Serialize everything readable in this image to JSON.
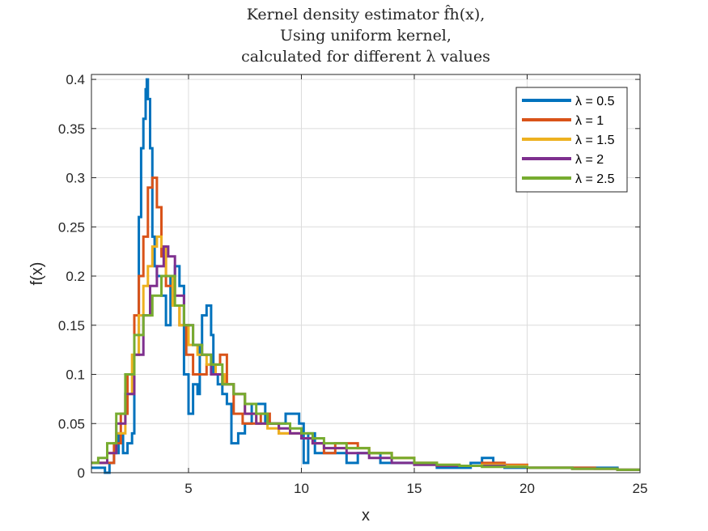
{
  "chart_data": {
    "type": "line",
    "title": [
      "Kernel density estimator f̂h(x),",
      "Using uniform kernel,",
      "calculated for different λ values"
    ],
    "xlabel": "x",
    "ylabel": "f(x)",
    "xlim": [
      0.7,
      25
    ],
    "ylim": [
      0,
      0.405
    ],
    "x_ticks": [
      5,
      10,
      15,
      20,
      25
    ],
    "y_ticks": [
      0,
      0.05,
      0.1,
      0.15,
      0.2,
      0.25,
      0.3,
      0.35,
      0.4
    ],
    "grid": true,
    "legend_position": "top-right",
    "series": [
      {
        "name": "λ = 0.5",
        "color": "#0072BD",
        "x": [
          0.7,
          1.0,
          1.3,
          1.5,
          1.7,
          1.9,
          2.1,
          2.3,
          2.5,
          2.6,
          2.8,
          2.9,
          3.0,
          3.1,
          3.15,
          3.2,
          3.3,
          3.4,
          3.5,
          3.6,
          3.8,
          4.0,
          4.2,
          4.4,
          4.6,
          4.8,
          5.0,
          5.2,
          5.4,
          5.5,
          5.6,
          5.8,
          6.0,
          6.1,
          6.3,
          6.5,
          6.7,
          6.9,
          7.2,
          7.5,
          7.8,
          8.1,
          8.4,
          8.7,
          9.0,
          9.3,
          9.6,
          9.9,
          10.1,
          10.3,
          10.6,
          11.0,
          11.5,
          12.0,
          12.5,
          13.0,
          13.5,
          14.0,
          14.5,
          15.0,
          15.5,
          16.0,
          16.5,
          17.0,
          17.5,
          18.0,
          18.5,
          19.0,
          19.5,
          20.0,
          20.5,
          21.0,
          22.0,
          23.0,
          24.0,
          25.0
        ],
        "y": [
          0.005,
          0.005,
          0.0,
          0.01,
          0.02,
          0.04,
          0.02,
          0.03,
          0.04,
          0.12,
          0.26,
          0.33,
          0.36,
          0.39,
          0.4,
          0.38,
          0.33,
          0.24,
          0.21,
          0.2,
          0.18,
          0.15,
          0.2,
          0.21,
          0.19,
          0.1,
          0.06,
          0.09,
          0.08,
          0.13,
          0.16,
          0.17,
          0.14,
          0.1,
          0.09,
          0.08,
          0.07,
          0.03,
          0.04,
          0.05,
          0.07,
          0.07,
          0.05,
          0.05,
          0.05,
          0.06,
          0.06,
          0.05,
          0.01,
          0.04,
          0.02,
          0.02,
          0.02,
          0.01,
          0.02,
          0.02,
          0.01,
          0.01,
          0.01,
          0.01,
          0.01,
          0.005,
          0.005,
          0.005,
          0.01,
          0.015,
          0.01,
          0.005,
          0.005,
          0.005,
          0.005,
          0.005,
          0.005,
          0.005,
          0.003,
          0.003
        ]
      },
      {
        "name": "λ = 1",
        "color": "#D95319",
        "x": [
          0.7,
          1.0,
          1.4,
          1.7,
          2.0,
          2.3,
          2.6,
          2.8,
          3.0,
          3.2,
          3.4,
          3.6,
          3.8,
          4.0,
          4.3,
          4.6,
          4.9,
          5.2,
          5.5,
          5.8,
          6.1,
          6.4,
          6.7,
          7.0,
          7.4,
          7.8,
          8.2,
          8.6,
          9.0,
          9.5,
          10.0,
          10.5,
          11.0,
          11.5,
          12.0,
          12.5,
          13.0,
          14.0,
          15.0,
          16.0,
          17.0,
          18.0,
          19.0,
          20.0,
          21.0,
          22.0,
          23.0,
          24.0,
          25.0
        ],
        "y": [
          0.01,
          0.01,
          0.01,
          0.03,
          0.06,
          0.1,
          0.16,
          0.2,
          0.24,
          0.29,
          0.3,
          0.27,
          0.22,
          0.19,
          0.17,
          0.15,
          0.12,
          0.1,
          0.1,
          0.11,
          0.11,
          0.12,
          0.09,
          0.06,
          0.05,
          0.05,
          0.06,
          0.05,
          0.04,
          0.04,
          0.035,
          0.03,
          0.02,
          0.03,
          0.03,
          0.025,
          0.02,
          0.015,
          0.01,
          0.007,
          0.007,
          0.01,
          0.008,
          0.005,
          0.005,
          0.005,
          0.004,
          0.003,
          0.003
        ]
      },
      {
        "name": "λ = 1.5",
        "color": "#EDB120",
        "x": [
          0.7,
          1.0,
          1.4,
          1.8,
          2.2,
          2.5,
          2.8,
          3.0,
          3.2,
          3.4,
          3.6,
          3.8,
          4.0,
          4.3,
          4.6,
          5.0,
          5.4,
          5.8,
          6.2,
          6.6,
          7.0,
          7.5,
          8.0,
          8.5,
          9.0,
          9.5,
          10.0,
          10.5,
          11.0,
          11.5,
          12.0,
          13.0,
          14.0,
          15.0,
          16.0,
          17.0,
          18.0,
          19.0,
          20.0,
          21.0,
          22.0,
          23.0,
          24.0,
          25.0
        ],
        "y": [
          0.01,
          0.01,
          0.02,
          0.04,
          0.08,
          0.12,
          0.16,
          0.19,
          0.21,
          0.23,
          0.24,
          0.23,
          0.2,
          0.17,
          0.15,
          0.13,
          0.12,
          0.11,
          0.1,
          0.09,
          0.08,
          0.06,
          0.05,
          0.045,
          0.04,
          0.04,
          0.035,
          0.03,
          0.025,
          0.025,
          0.025,
          0.02,
          0.015,
          0.01,
          0.008,
          0.007,
          0.008,
          0.007,
          0.005,
          0.005,
          0.004,
          0.004,
          0.003,
          0.003
        ]
      },
      {
        "name": "λ = 2",
        "color": "#7E2F8E",
        "x": [
          0.7,
          1.0,
          1.4,
          1.8,
          2.2,
          2.6,
          3.0,
          3.3,
          3.6,
          3.9,
          4.1,
          4.4,
          4.8,
          5.2,
          5.6,
          6.0,
          6.5,
          7.0,
          7.5,
          8.0,
          8.5,
          9.0,
          9.5,
          10.0,
          10.5,
          11.0,
          12.0,
          13.0,
          14.0,
          15.0,
          16.0,
          17.0,
          18.0,
          19.0,
          20.0,
          21.0,
          22.0,
          23.0,
          24.0,
          25.0
        ],
        "y": [
          0.01,
          0.01,
          0.02,
          0.05,
          0.08,
          0.12,
          0.16,
          0.19,
          0.21,
          0.23,
          0.22,
          0.18,
          0.15,
          0.13,
          0.12,
          0.1,
          0.09,
          0.08,
          0.06,
          0.05,
          0.05,
          0.045,
          0.04,
          0.035,
          0.03,
          0.025,
          0.02,
          0.015,
          0.01,
          0.008,
          0.007,
          0.007,
          0.007,
          0.006,
          0.005,
          0.005,
          0.004,
          0.004,
          0.003,
          0.003
        ]
      },
      {
        "name": "λ = 2.5",
        "color": "#77AC30",
        "x": [
          0.7,
          1.0,
          1.4,
          1.8,
          2.2,
          2.6,
          3.0,
          3.4,
          3.8,
          4.1,
          4.4,
          4.8,
          5.2,
          5.6,
          6.0,
          6.5,
          7.0,
          7.5,
          8.0,
          8.5,
          9.0,
          9.5,
          10.0,
          10.5,
          11.0,
          12.0,
          13.0,
          14.0,
          15.0,
          16.0,
          17.0,
          18.0,
          19.0,
          20.0,
          21.0,
          22.0,
          23.0,
          24.0,
          25.0
        ],
        "y": [
          0.01,
          0.015,
          0.03,
          0.06,
          0.1,
          0.14,
          0.16,
          0.18,
          0.2,
          0.2,
          0.17,
          0.15,
          0.13,
          0.12,
          0.11,
          0.09,
          0.08,
          0.07,
          0.06,
          0.05,
          0.05,
          0.045,
          0.04,
          0.035,
          0.03,
          0.025,
          0.02,
          0.015,
          0.01,
          0.008,
          0.007,
          0.006,
          0.006,
          0.005,
          0.005,
          0.004,
          0.004,
          0.003,
          0.003
        ]
      }
    ]
  }
}
